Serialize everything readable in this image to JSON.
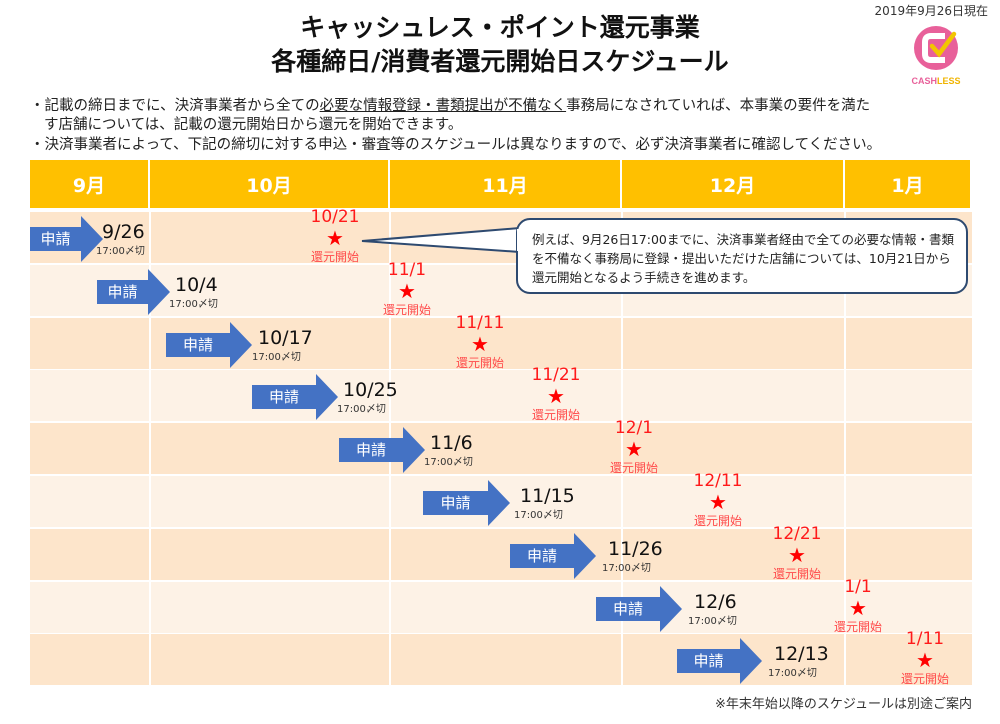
{
  "header": {
    "title_line1": "キャッシュレス・ポイント還元事業",
    "title_line2": "各種締日/消費者還元開始日スケジュール",
    "as_of": "2019年9月26日現在",
    "logo_text": "CASHLESS"
  },
  "notes": {
    "note1_pre": "・記載の締日までに、決済事業者から全ての",
    "note1_underlined": "必要な情報登録・書類提出が不備なく",
    "note1_post": "事務局になされていれば、本事業の要件を満た",
    "note1_line2": "す店舗については、記載の還元開始日から還元を開始できます。",
    "note2": "・決済事業者によって、下記の締切に対する申込・審査等のスケジュールは異なりますので、必ず決済事業者に確認してください。"
  },
  "months": [
    "9月",
    "10月",
    "11月",
    "12月",
    "1月"
  ],
  "apply_label": "申請",
  "deadline_time": "17:00〆切",
  "start_label": "還元開始",
  "schedule": [
    {
      "deadline": "9/26",
      "start": "10/21"
    },
    {
      "deadline": "10/4",
      "start": "11/1"
    },
    {
      "deadline": "10/17",
      "start": "11/11"
    },
    {
      "deadline": "10/25",
      "start": "11/21"
    },
    {
      "deadline": "11/6",
      "start": "12/1"
    },
    {
      "deadline": "11/15",
      "start": "12/11"
    },
    {
      "deadline": "11/26",
      "start": "12/21"
    },
    {
      "deadline": "12/6",
      "start": "1/1"
    },
    {
      "deadline": "12/13",
      "start": "1/11"
    }
  ],
  "callout": "例えば、9月26日17:00までに、決済事業者経由で全ての必要な情報・書類を不備なく事務局に登録・提出いただけた店舗については、10月21日から還元開始となるよう手続きを進めます。",
  "footnote": "※年末年始以降のスケジュールは別途ご案内",
  "colors": {
    "header": "#ffc000",
    "row_dark": "#fde5cb",
    "row_light": "#fdf2e6",
    "arrow": "#4472c4",
    "star": "#ff0000"
  }
}
